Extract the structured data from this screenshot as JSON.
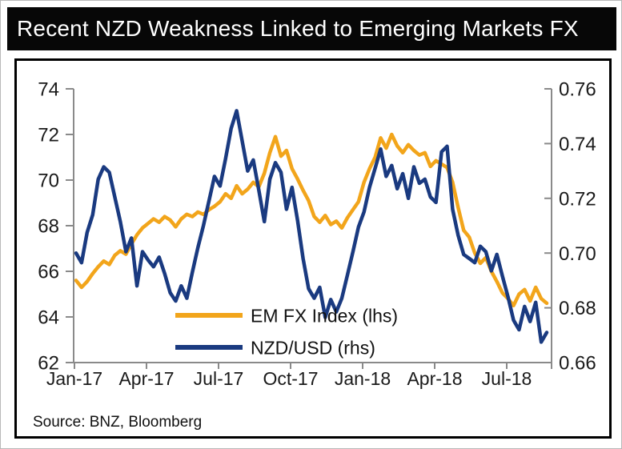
{
  "title": "Recent NZD Weakness Linked to Emerging Markets FX",
  "source": "Source: BNZ, Bloomberg",
  "colors": {
    "title_bg": "#070707",
    "title_fg": "#ffffff",
    "em_fx_line": "#F2A51B",
    "nzd_line": "#1A3A80",
    "axis": "#8a8a8a",
    "tick_text": "#1a1a1a"
  },
  "chart_data": {
    "type": "line",
    "title": "Recent NZD Weakness Linked to Emerging Markets FX",
    "grid": false,
    "legend_position": "inside-bottom-center",
    "x_tick_labels": [
      "Jan-17",
      "Apr-17",
      "Jul-17",
      "Oct-17",
      "Jan-18",
      "Apr-18",
      "Jul-18"
    ],
    "x_range_note": "weekly points from early Jan-2017 to late Aug-2018",
    "left_axis": {
      "tick_labels": [
        "74",
        "72",
        "70",
        "68",
        "66",
        "64",
        "62"
      ],
      "min": 62,
      "max": 74
    },
    "right_axis": {
      "tick_labels": [
        "0.76",
        "0.74",
        "0.72",
        "0.70",
        "0.68",
        "0.66"
      ],
      "min": 0.66,
      "max": 0.76
    },
    "legend": [
      {
        "label": "EM FX Index (lhs)",
        "color": "#F2A51B"
      },
      {
        "label": "NZD/USD (rhs)",
        "color": "#1A3A80"
      }
    ],
    "series": [
      {
        "name": "EM FX Index (lhs)",
        "axis": "left",
        "values": [
          65.6,
          65.3,
          65.55,
          65.9,
          66.2,
          66.45,
          66.3,
          66.7,
          66.9,
          66.75,
          67.2,
          67.6,
          67.9,
          68.1,
          68.3,
          68.15,
          68.4,
          68.25,
          67.95,
          68.3,
          68.5,
          68.4,
          68.6,
          68.5,
          68.7,
          68.85,
          69.05,
          69.4,
          69.2,
          69.75,
          69.4,
          69.6,
          69.9,
          69.7,
          70.3,
          71.2,
          71.9,
          71.05,
          71.3,
          70.5,
          70.05,
          69.55,
          69.1,
          68.4,
          68.15,
          68.45,
          68.05,
          68.2,
          67.9,
          68.35,
          68.7,
          69.05,
          69.9,
          70.5,
          71.0,
          71.85,
          71.4,
          72.0,
          71.5,
          71.2,
          71.55,
          71.3,
          71.1,
          71.2,
          70.6,
          70.85,
          70.7,
          70.55,
          69.9,
          68.8,
          67.8,
          67.5,
          66.8,
          66.35,
          66.6,
          66.0,
          65.55,
          65.05,
          64.8,
          64.5,
          65.0,
          65.2,
          64.7,
          65.3,
          64.8,
          64.6
        ]
      },
      {
        "name": "NZD/USD (rhs)",
        "axis": "right",
        "values": [
          0.7,
          0.6965,
          0.7075,
          0.714,
          0.727,
          0.7315,
          0.7295,
          0.7205,
          0.7115,
          0.7005,
          0.7055,
          0.688,
          0.7005,
          0.6975,
          0.695,
          0.6985,
          0.6925,
          0.6855,
          0.6825,
          0.688,
          0.6835,
          0.693,
          0.702,
          0.71,
          0.719,
          0.728,
          0.7245,
          0.7345,
          0.7455,
          0.752,
          0.741,
          0.73,
          0.734,
          0.723,
          0.7115,
          0.727,
          0.733,
          0.7295,
          0.716,
          0.724,
          0.712,
          0.698,
          0.687,
          0.6835,
          0.6875,
          0.6765,
          0.683,
          0.6785,
          0.6835,
          0.692,
          0.7005,
          0.7095,
          0.715,
          0.724,
          0.731,
          0.738,
          0.728,
          0.732,
          0.7235,
          0.729,
          0.72,
          0.7315,
          0.7255,
          0.727,
          0.7205,
          0.7185,
          0.737,
          0.739,
          0.716,
          0.7065,
          0.6995,
          0.698,
          0.6965,
          0.7025,
          0.7005,
          0.6935,
          0.6995,
          0.6915,
          0.684,
          0.6755,
          0.672,
          0.6805,
          0.675,
          0.682,
          0.6675,
          0.671
        ]
      }
    ]
  }
}
